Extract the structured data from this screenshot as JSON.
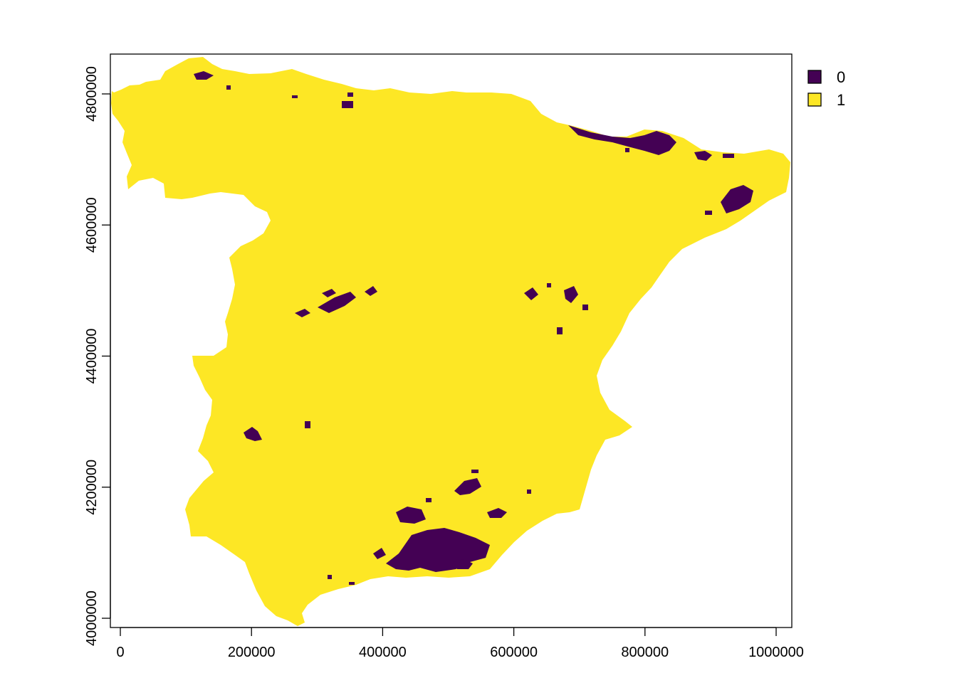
{
  "chart_data": {
    "type": "heatmap",
    "title": "",
    "xlabel": "",
    "ylabel": "",
    "xlim": [
      -15000,
      1020000
    ],
    "ylim": [
      3990000,
      4860000
    ],
    "x_ticks": [
      0,
      200000,
      400000,
      600000,
      800000,
      1000000
    ],
    "x_tick_labels": [
      "0",
      "200000",
      "400000",
      "600000",
      "800000",
      "1000000"
    ],
    "y_ticks": [
      4000000,
      4200000,
      4400000,
      4600000,
      4800000
    ],
    "y_tick_labels": [
      "4000000",
      "4200000",
      "4400000",
      "4600000",
      "4800000"
    ],
    "legend": {
      "placement": "top-right",
      "entries": [
        {
          "label": "0",
          "color": "#440154"
        },
        {
          "label": "1",
          "color": "#FDE725"
        }
      ]
    },
    "background_value": "1",
    "patches_value": "0",
    "grid": false
  }
}
